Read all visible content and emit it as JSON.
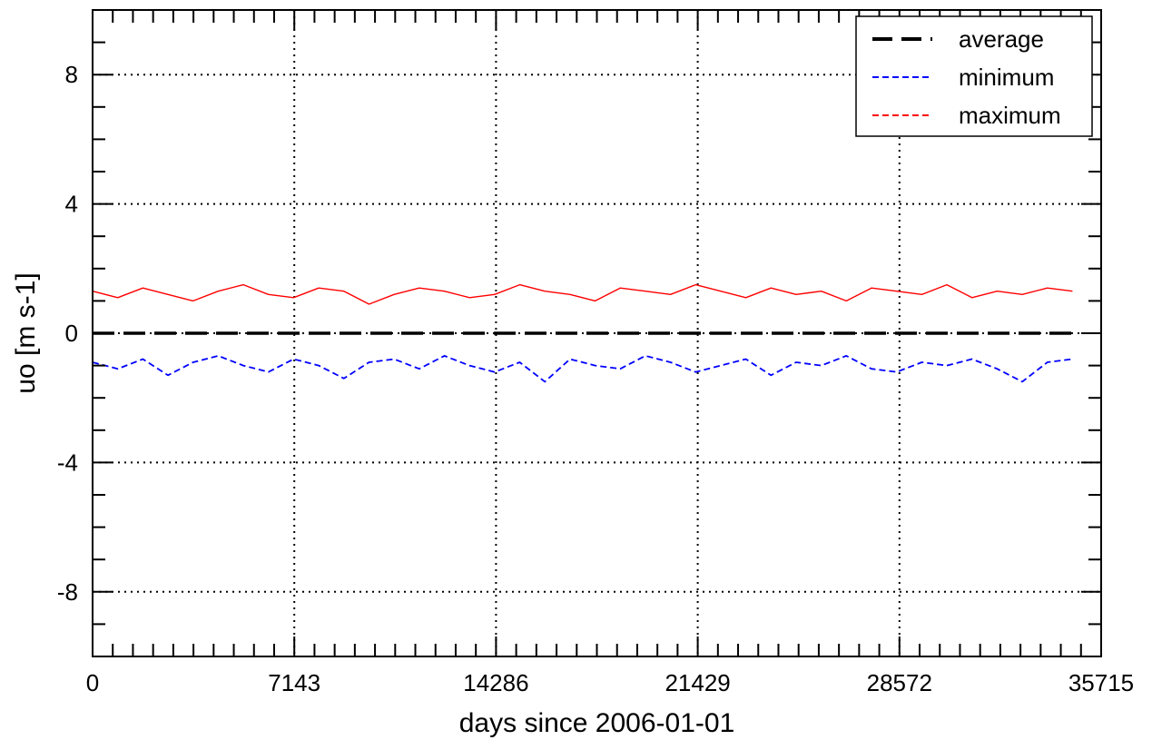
{
  "chart_data": {
    "type": "line",
    "title": "",
    "xlabel": "days since 2006-01-01",
    "ylabel": "uo [m s-1]",
    "xlim": [
      0,
      35715
    ],
    "ylim": [
      -10,
      10
    ],
    "x_ticks": [
      0,
      7143,
      14286,
      21429,
      28572,
      35715
    ],
    "x_tick_labels": [
      "0",
      "7143",
      "14286",
      "21429",
      "28572",
      "35715"
    ],
    "y_ticks": [
      8,
      4,
      0,
      -4,
      -8
    ],
    "y_tick_labels": [
      "8",
      "4",
      "0",
      "-4",
      "-8"
    ],
    "grid": true,
    "legend_position": "top-right",
    "x_start": 0,
    "x_end": 34700,
    "series": [
      {
        "name": "average",
        "color": "#000000",
        "dash": "long-dash",
        "values": [
          0,
          0,
          0,
          0,
          0,
          0,
          0,
          0,
          0,
          0,
          0,
          0,
          0,
          0,
          0,
          0,
          0,
          0,
          0,
          0,
          0,
          0,
          0,
          0,
          0,
          0,
          0,
          0,
          0,
          0,
          0,
          0,
          0,
          0,
          0,
          0,
          0,
          0,
          0,
          0
        ]
      },
      {
        "name": "minimum",
        "color": "#0000ff",
        "dash": "short-dash",
        "values": [
          -0.9,
          -1.1,
          -0.8,
          -1.3,
          -0.9,
          -0.7,
          -1.0,
          -1.2,
          -0.8,
          -1.0,
          -1.4,
          -0.9,
          -0.8,
          -1.1,
          -0.7,
          -1.0,
          -1.2,
          -0.9,
          -1.5,
          -0.8,
          -1.0,
          -1.1,
          -0.7,
          -0.9,
          -1.2,
          -1.0,
          -0.8,
          -1.3,
          -0.9,
          -1.0,
          -0.7,
          -1.1,
          -1.2,
          -0.9,
          -1.0,
          -0.8,
          -1.1,
          -1.5,
          -0.9,
          -0.8
        ]
      },
      {
        "name": "maximum",
        "color": "#ff0000",
        "dash": "solid",
        "values": [
          1.3,
          1.1,
          1.4,
          1.2,
          1.0,
          1.3,
          1.5,
          1.2,
          1.1,
          1.4,
          1.3,
          0.9,
          1.2,
          1.4,
          1.3,
          1.1,
          1.2,
          1.5,
          1.3,
          1.2,
          1.0,
          1.4,
          1.3,
          1.2,
          1.5,
          1.3,
          1.1,
          1.4,
          1.2,
          1.3,
          1.0,
          1.4,
          1.3,
          1.2,
          1.5,
          1.1,
          1.3,
          1.2,
          1.4,
          1.3
        ]
      }
    ]
  }
}
